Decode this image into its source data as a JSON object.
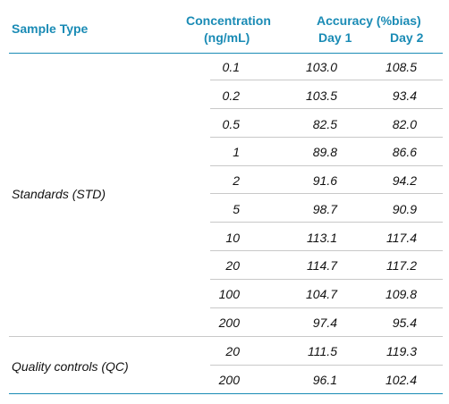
{
  "header": {
    "sample_type": "Sample Type",
    "concentration_line1": "Concentration",
    "concentration_line2": "(ng/mL)",
    "accuracy": "Accuracy (%bias)",
    "day1": "Day 1",
    "day2": "Day 2"
  },
  "groups": [
    {
      "label": "Standards (STD)"
    },
    {
      "label": "Quality controls (QC)"
    }
  ],
  "rows": [
    {
      "conc": "0.1",
      "day1": "103.0",
      "day2": "108.5"
    },
    {
      "conc": "0.2",
      "day1": "103.5",
      "day2": "93.4"
    },
    {
      "conc": "0.5",
      "day1": "82.5",
      "day2": "82.0"
    },
    {
      "conc": "1",
      "day1": "89.8",
      "day2": "86.6"
    },
    {
      "conc": "2",
      "day1": "91.6",
      "day2": "94.2"
    },
    {
      "conc": "5",
      "day1": "98.7",
      "day2": "90.9"
    },
    {
      "conc": "10",
      "day1": "113.1",
      "day2": "117.4"
    },
    {
      "conc": "20",
      "day1": "114.7",
      "day2": "117.2"
    },
    {
      "conc": "100",
      "day1": "104.7",
      "day2": "109.8"
    },
    {
      "conc": "200",
      "day1": "97.4",
      "day2": "95.4"
    },
    {
      "conc": "20",
      "day1": "111.5",
      "day2": "119.3"
    },
    {
      "conc": "200",
      "day1": "96.1",
      "day2": "102.4"
    }
  ],
  "colors": {
    "header_text": "#1a8bb5",
    "rule": "#1a8bb5",
    "separator": "#c8c8c8"
  }
}
